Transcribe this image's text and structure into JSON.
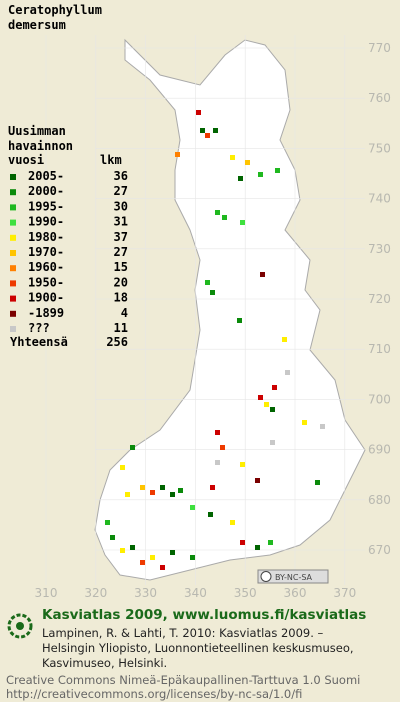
{
  "title": [
    "Ceratophyllum",
    "demersum"
  ],
  "legend": {
    "heading": [
      "Uusimman",
      "havainnon",
      "vuosi"
    ],
    "count_heading": "lkm",
    "rows": [
      {
        "label": "2005-",
        "count": 36,
        "color": "#006400"
      },
      {
        "label": "2000-",
        "count": 27,
        "color": "#0a8a0a"
      },
      {
        "label": "1995-",
        "count": 30,
        "color": "#1fb81f"
      },
      {
        "label": "1990-",
        "count": 31,
        "color": "#3ee03e"
      },
      {
        "label": "1980-",
        "count": 37,
        "color": "#ffee00"
      },
      {
        "label": "1970-",
        "count": 27,
        "color": "#ffc400"
      },
      {
        "label": "1960-",
        "count": 15,
        "color": "#ff8000"
      },
      {
        "label": "1950-",
        "count": 20,
        "color": "#ee3a00"
      },
      {
        "label": "1900-",
        "count": 18,
        "color": "#cc0000"
      },
      {
        "label": "-1899",
        "count": 4,
        "color": "#7a0000"
      },
      {
        "label": "???",
        "count": 11,
        "color": "#c8c8c8"
      }
    ],
    "total_label": "Yhteensä",
    "total": 256
  },
  "map": {
    "northing_labels": [
      770,
      760,
      750,
      740,
      730,
      720,
      710,
      700,
      690,
      680,
      670
    ],
    "easting_labels": [
      310,
      320,
      330,
      340,
      350,
      360,
      370
    ],
    "license_badge": "BY-NC-SA"
  },
  "footer": {
    "headline": "Kasviatlas 2009, www.luomus.fi/kasviatlas",
    "citation": [
      "Lampinen, R. & Lahti, T. 2010: Kasviatlas 2009. –",
      "Helsingin Yliopisto, Luonnontieteellinen keskusmuseo,",
      "Kasvimuseo, Helsinki."
    ],
    "license": [
      "Creative Commons Nimeä-Epäkaupallinen-Tarttuva 1.0 Suomi",
      "http://creativecommons.org/licenses/by-nc-sa/1.0/fi"
    ]
  }
}
